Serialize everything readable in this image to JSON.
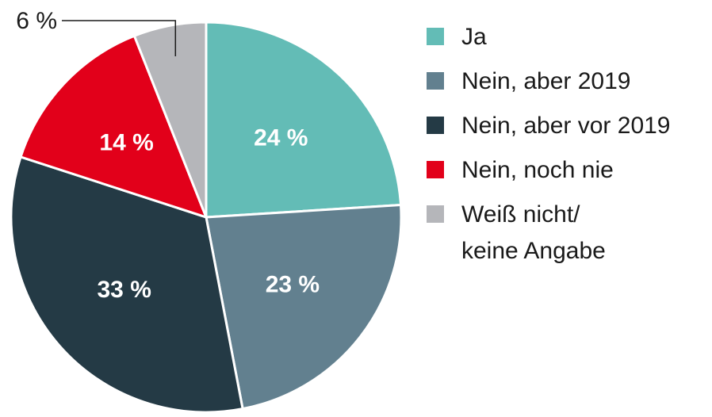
{
  "chart_data": {
    "type": "pie",
    "title": "",
    "slices": [
      {
        "name": "Ja",
        "value": 24,
        "label": "24 %",
        "color": "#63bcb6"
      },
      {
        "name": "Nein, aber 2019",
        "value": 23,
        "label": "23 %",
        "color": "#62808f"
      },
      {
        "name": "Nein, aber vor 2019",
        "value": 33,
        "label": "33 %",
        "color": "#243a45"
      },
      {
        "name": "Nein, noch nie",
        "value": 14,
        "label": "14 %",
        "color": "#e2001a"
      },
      {
        "name": "Weiß nicht/\nkeine Angabe",
        "value": 6,
        "label": "6 %",
        "color": "#b5b6ba",
        "label_position": "outside"
      }
    ],
    "start_angle": "top",
    "direction": "clockwise",
    "legend_placement": "right"
  }
}
